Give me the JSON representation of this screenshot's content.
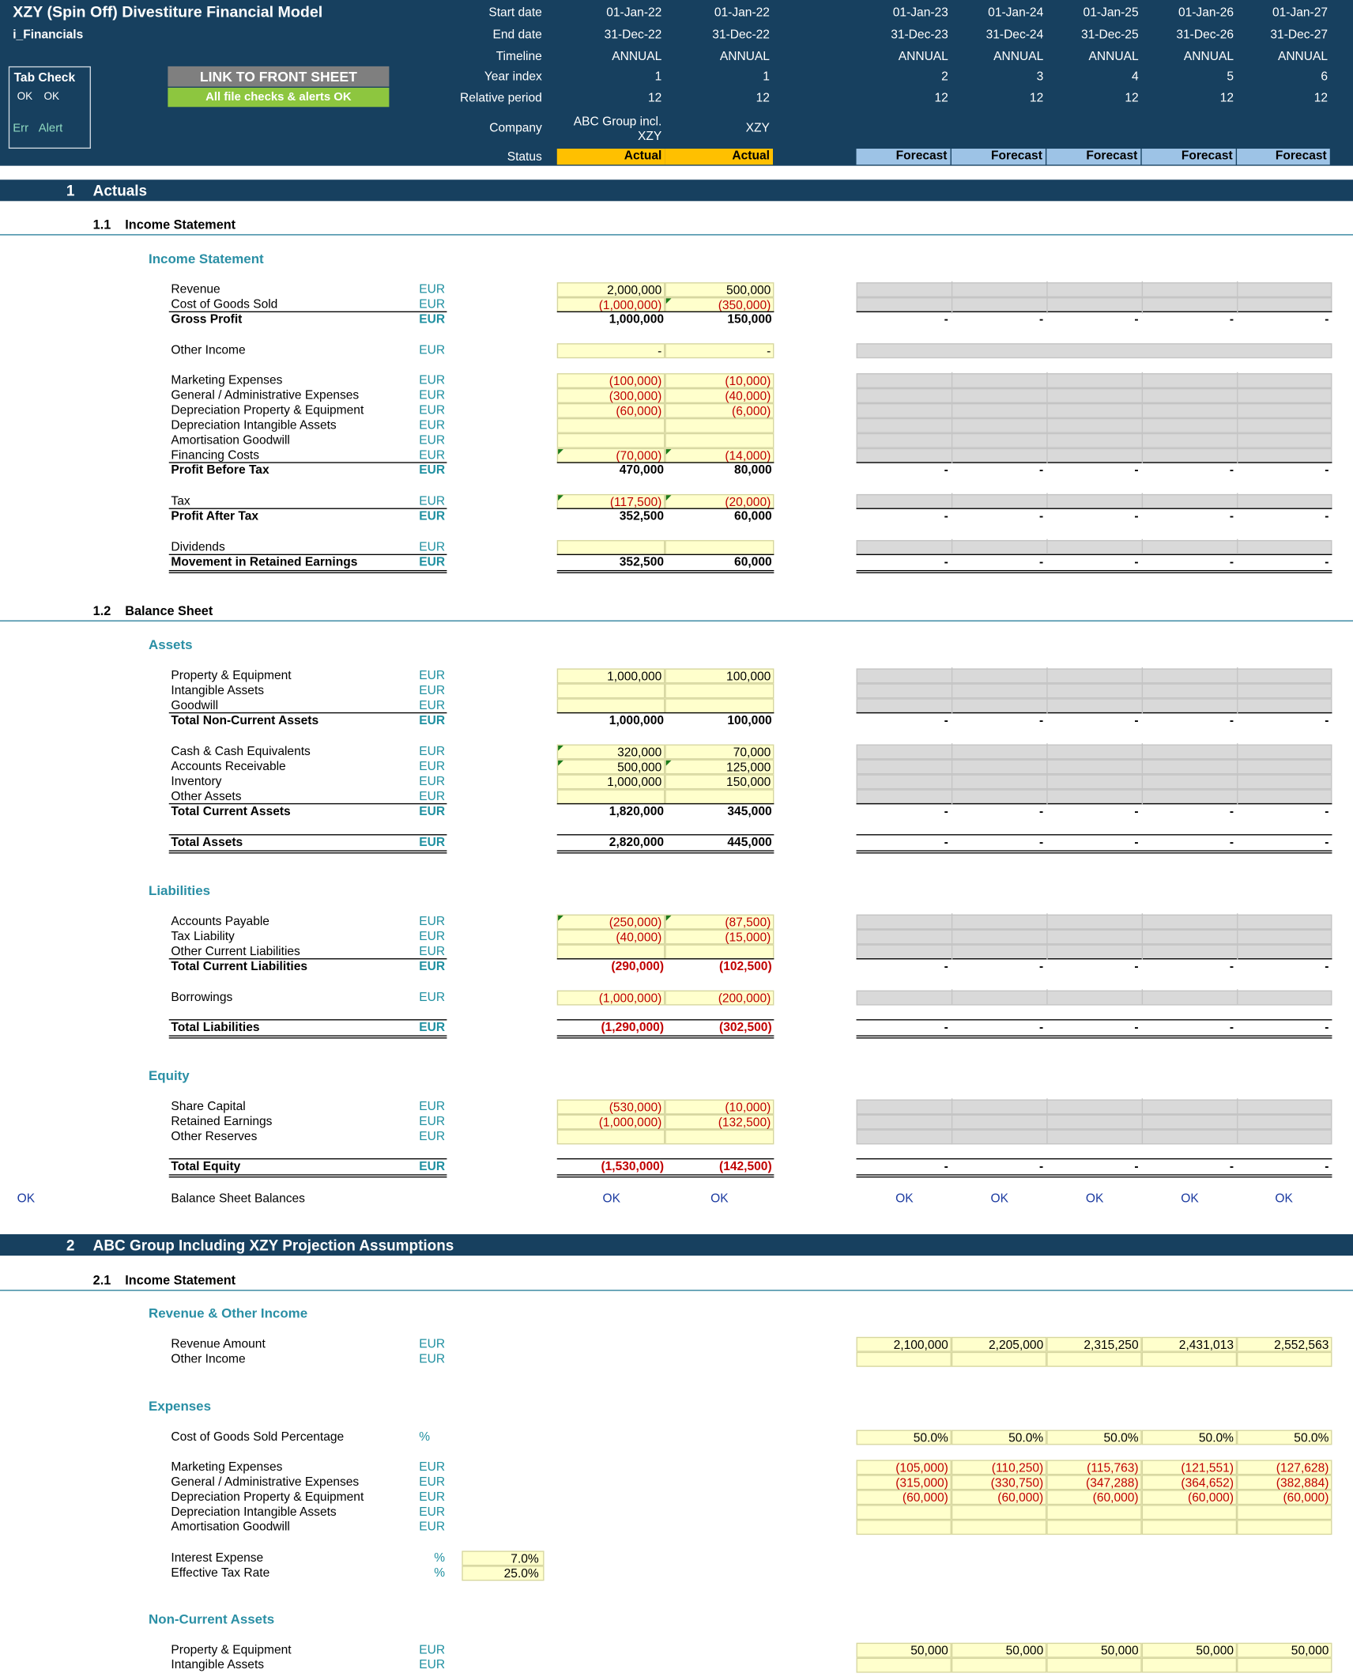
{
  "header": {
    "title": "XZY (Spin Off) Divestiture Financial Model",
    "tab_name": "i_Financials",
    "tab_check_label": "Tab Check",
    "tab_check_ok1": "OK",
    "tab_check_ok2": "OK",
    "err_label": "Err",
    "alert_label": "Alert",
    "link_button": "LINK TO FRONT SHEET",
    "checks_button": "All file checks & alerts OK",
    "row_labels": [
      "Start date",
      "End date",
      "Timeline",
      "Year index",
      "Relative period",
      "Company",
      "Status"
    ],
    "columns": [
      {
        "start": "01-Jan-22",
        "end": "31-Dec-22",
        "timeline": "ANNUAL",
        "year": "1",
        "period": "12",
        "company1": "ABC Group incl.",
        "company2": "XZY",
        "status": "Actual"
      },
      {
        "start": "01-Jan-22",
        "end": "31-Dec-22",
        "timeline": "ANNUAL",
        "year": "1",
        "period": "12",
        "company1": "",
        "company2": "XZY",
        "status": "Actual"
      },
      {
        "start": "01-Jan-23",
        "end": "31-Dec-23",
        "timeline": "ANNUAL",
        "year": "2",
        "period": "12",
        "company1": "",
        "company2": "",
        "status": "Forecast"
      },
      {
        "start": "01-Jan-24",
        "end": "31-Dec-24",
        "timeline": "ANNUAL",
        "year": "3",
        "period": "12",
        "company1": "",
        "company2": "",
        "status": "Forecast"
      },
      {
        "start": "01-Jan-25",
        "end": "31-Dec-25",
        "timeline": "ANNUAL",
        "year": "4",
        "period": "12",
        "company1": "",
        "company2": "",
        "status": "Forecast"
      },
      {
        "start": "01-Jan-26",
        "end": "31-Dec-26",
        "timeline": "ANNUAL",
        "year": "5",
        "period": "12",
        "company1": "",
        "company2": "",
        "status": "Forecast"
      },
      {
        "start": "01-Jan-27",
        "end": "31-Dec-27",
        "timeline": "ANNUAL",
        "year": "6",
        "period": "12",
        "company1": "",
        "company2": "",
        "status": "Forecast"
      }
    ]
  },
  "colors": {
    "navy": "#17405f",
    "actual": "#ffc000",
    "forecast": "#9dc3e6",
    "input": "#ffffcc",
    "grey": "#d9d9d9",
    "ok_green": "#8dc63f",
    "teal": "#2a8fa5",
    "red": "#c00000"
  },
  "sections": [
    {
      "num": "1",
      "title": "Actuals"
    },
    {
      "num": "2",
      "title": "ABC Group Including XZY Projection Assumptions"
    }
  ],
  "subsections": [
    {
      "num": "1.1",
      "title": "Income Statement"
    },
    {
      "num": "1.2",
      "title": "Balance Sheet"
    },
    {
      "num": "2.1",
      "title": "Income Statement"
    }
  ],
  "groups": [
    "Income Statement",
    "Assets",
    "Liabilities",
    "Equity",
    "Revenue & Other Income",
    "Expenses",
    "Non-Current Assets"
  ],
  "rows": [
    {
      "label": "Revenue",
      "unit": "EUR",
      "a": "2,000,000",
      "b": "500,000",
      "type": "in"
    },
    {
      "label": "Cost of Goods Sold",
      "unit": "EUR",
      "a": "(1,000,000)",
      "b": "(350,000)",
      "type": "in",
      "neg": true
    },
    {
      "label": "Gross Profit",
      "unit": "EUR",
      "a": "1,000,000",
      "b": "150,000",
      "type": "total",
      "f": "-"
    },
    {
      "label": "Other Income",
      "unit": "EUR",
      "a": "-",
      "b": "-",
      "type": "in"
    },
    {
      "label": "Marketing Expenses",
      "unit": "EUR",
      "a": "(100,000)",
      "b": "(10,000)",
      "type": "in",
      "neg": true
    },
    {
      "label": "General / Administrative Expenses",
      "unit": "EUR",
      "a": "(300,000)",
      "b": "(40,000)",
      "type": "in",
      "neg": true
    },
    {
      "label": "Depreciation Property & Equipment",
      "unit": "EUR",
      "a": "(60,000)",
      "b": "(6,000)",
      "type": "in",
      "neg": true
    },
    {
      "label": "Depreciation Intangible Assets",
      "unit": "EUR",
      "a": "",
      "b": "",
      "type": "in"
    },
    {
      "label": "Amortisation Goodwill",
      "unit": "EUR",
      "a": "",
      "b": "",
      "type": "in"
    },
    {
      "label": "Financing Costs",
      "unit": "EUR",
      "a": "(70,000)",
      "b": "(14,000)",
      "type": "in",
      "neg": true
    },
    {
      "label": "Profit Before Tax",
      "unit": "EUR",
      "a": "470,000",
      "b": "80,000",
      "type": "total",
      "f": "-"
    },
    {
      "label": "Tax",
      "unit": "EUR",
      "a": "(117,500)",
      "b": "(20,000)",
      "type": "in",
      "neg": true
    },
    {
      "label": "Profit After Tax",
      "unit": "EUR",
      "a": "352,500",
      "b": "60,000",
      "type": "total",
      "f": "-"
    },
    {
      "label": "Dividends",
      "unit": "EUR",
      "a": "",
      "b": "",
      "type": "in"
    },
    {
      "label": "Movement in Retained Earnings",
      "unit": "EUR",
      "a": "352,500",
      "b": "60,000",
      "type": "total",
      "f": "-"
    },
    {
      "label": "Property & Equipment",
      "unit": "EUR",
      "a": "1,000,000",
      "b": "100,000",
      "type": "in"
    },
    {
      "label": "Intangible Assets",
      "unit": "EUR",
      "a": "",
      "b": "",
      "type": "in"
    },
    {
      "label": "Goodwill",
      "unit": "EUR",
      "a": "",
      "b": "",
      "type": "in"
    },
    {
      "label": "Total Non-Current Assets",
      "unit": "EUR",
      "a": "1,000,000",
      "b": "100,000",
      "type": "total",
      "f": "-"
    },
    {
      "label": "Cash & Cash Equivalents",
      "unit": "EUR",
      "a": "320,000",
      "b": "70,000",
      "type": "in"
    },
    {
      "label": "Accounts Receivable",
      "unit": "EUR",
      "a": "500,000",
      "b": "125,000",
      "type": "in"
    },
    {
      "label": "Inventory",
      "unit": "EUR",
      "a": "1,000,000",
      "b": "150,000",
      "type": "in"
    },
    {
      "label": "Other Assets",
      "unit": "EUR",
      "a": "",
      "b": "",
      "type": "in"
    },
    {
      "label": "Total Current Assets",
      "unit": "EUR",
      "a": "1,820,000",
      "b": "345,000",
      "type": "total",
      "f": "-"
    },
    {
      "label": "Total Assets",
      "unit": "EUR",
      "a": "2,820,000",
      "b": "445,000",
      "type": "total",
      "f": "-"
    },
    {
      "label": "Accounts Payable",
      "unit": "EUR",
      "a": "(250,000)",
      "b": "(87,500)",
      "type": "in",
      "neg": true
    },
    {
      "label": "Tax Liability",
      "unit": "EUR",
      "a": "(40,000)",
      "b": "(15,000)",
      "type": "in",
      "neg": true
    },
    {
      "label": "Other Current Liabilities",
      "unit": "EUR",
      "a": "",
      "b": "",
      "type": "in"
    },
    {
      "label": "Total Current Liabilities",
      "unit": "EUR",
      "a": "(290,000)",
      "b": "(102,500)",
      "type": "total",
      "neg": true,
      "f": "-"
    },
    {
      "label": "Borrowings",
      "unit": "EUR",
      "a": "(1,000,000)",
      "b": "(200,000)",
      "type": "in",
      "neg": true
    },
    {
      "label": "Total Liabilities",
      "unit": "EUR",
      "a": "(1,290,000)",
      "b": "(302,500)",
      "type": "total",
      "neg": true,
      "f": "-"
    },
    {
      "label": "Share Capital",
      "unit": "EUR",
      "a": "(530,000)",
      "b": "(10,000)",
      "type": "in",
      "neg": true
    },
    {
      "label": "Retained Earnings",
      "unit": "EUR",
      "a": "(1,000,000)",
      "b": "(132,500)",
      "type": "in",
      "neg": true
    },
    {
      "label": "Other Reserves",
      "unit": "EUR",
      "a": "",
      "b": "",
      "type": "in"
    },
    {
      "label": "Total Equity",
      "unit": "EUR",
      "a": "(1,530,000)",
      "b": "(142,500)",
      "type": "total",
      "neg": true,
      "f": "-"
    }
  ],
  "balance_check": {
    "left": "OK",
    "label": "Balance Sheet Balances",
    "values": [
      "OK",
      "OK",
      "OK",
      "OK",
      "OK",
      "OK",
      "OK"
    ]
  },
  "proj": [
    {
      "label": "Revenue Amount",
      "unit": "EUR",
      "vals": [
        "2,100,000",
        "2,205,000",
        "2,315,250",
        "2,431,013",
        "2,552,563"
      ]
    },
    {
      "label": "Other Income",
      "unit": "EUR",
      "vals": [
        "",
        "",
        "",
        "",
        ""
      ]
    },
    {
      "label": "Cost of Goods Sold Percentage",
      "unit": "%",
      "vals": [
        "50.0%",
        "50.0%",
        "50.0%",
        "50.0%",
        "50.0%"
      ]
    },
    {
      "label": "Marketing Expenses",
      "unit": "EUR",
      "vals": [
        "(105,000)",
        "(110,250)",
        "(115,763)",
        "(121,551)",
        "(127,628)"
      ],
      "neg": true
    },
    {
      "label": "General / Administrative Expenses",
      "unit": "EUR",
      "vals": [
        "(315,000)",
        "(330,750)",
        "(347,288)",
        "(364,652)",
        "(382,884)"
      ],
      "neg": true
    },
    {
      "label": "Depreciation Property & Equipment",
      "unit": "EUR",
      "vals": [
        "(60,000)",
        "(60,000)",
        "(60,000)",
        "(60,000)",
        "(60,000)"
      ],
      "neg": true
    },
    {
      "label": "Depreciation Intangible Assets",
      "unit": "EUR",
      "vals": [
        "",
        "",
        "",
        "",
        ""
      ]
    },
    {
      "label": "Amortisation Goodwill",
      "unit": "EUR",
      "vals": [
        "",
        "",
        "",
        "",
        ""
      ]
    },
    {
      "label": "Property & Equipment",
      "unit": "EUR",
      "vals": [
        "50,000",
        "50,000",
        "50,000",
        "50,000",
        "50,000"
      ]
    },
    {
      "label": "Intangible Assets",
      "unit": "EUR",
      "vals": [
        "",
        "",
        "",
        "",
        ""
      ]
    }
  ],
  "rates": [
    {
      "label": "Interest Expense",
      "unit": "%",
      "value": "7.0%"
    },
    {
      "label": "Effective Tax Rate",
      "unit": "%",
      "value": "25.0%"
    }
  ]
}
